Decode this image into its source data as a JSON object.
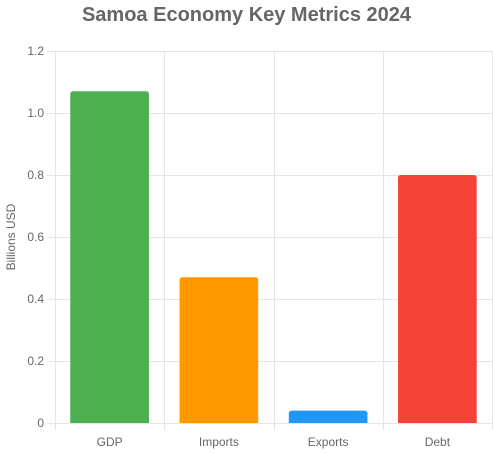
{
  "chart_data": {
    "type": "bar",
    "title": "Samoa Economy Key Metrics 2024",
    "categories": [
      "GDP",
      "Imports",
      "Exports",
      "Debt"
    ],
    "values": [
      1.07,
      0.47,
      0.04,
      0.8
    ],
    "colors": [
      "#4caf50",
      "#ff9800",
      "#2196f3",
      "#f44336"
    ],
    "xlabel": "",
    "ylabel": "Billions USD",
    "ylim": [
      0,
      1.2
    ],
    "yticks": [
      0,
      0.2,
      0.4,
      0.6,
      0.8,
      1.0,
      1.2
    ],
    "ytick_labels": [
      "0",
      "0.2",
      "0.4",
      "0.6",
      "0.8",
      "1.0",
      "1.2"
    ],
    "grid": true,
    "legend": "none"
  }
}
